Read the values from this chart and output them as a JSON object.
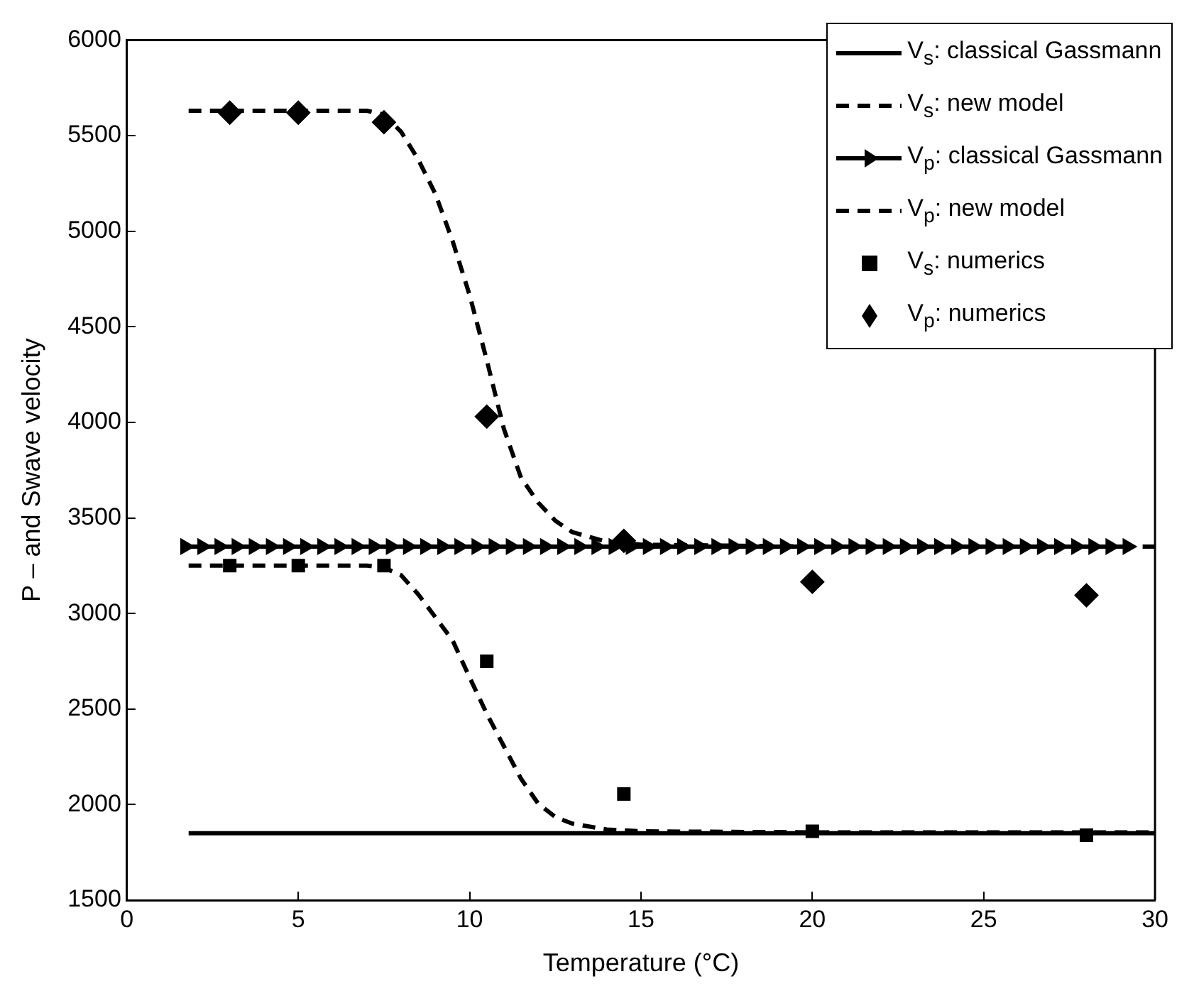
{
  "chart_data": {
    "type": "line",
    "xlabel": "Temperature (°C)",
    "ylabel": "P – and Swave velocity",
    "xlim": [
      0,
      30
    ],
    "xticks": [
      0,
      5,
      10,
      15,
      20,
      25,
      30
    ],
    "ylim": [
      1500,
      6000
    ],
    "yticks": [
      1500,
      2000,
      2500,
      3000,
      3500,
      4000,
      4500,
      5000,
      5500,
      6000
    ],
    "grid": false,
    "legend": "top right",
    "series": [
      {
        "name": "V$_{s}$: classical Gassmann",
        "color": "#000000",
        "line_style": "solid",
        "marker": "none",
        "x": [
          1.8,
          30
        ],
        "values": [
          1850,
          1850
        ]
      },
      {
        "name": "V$_{s}$: new model",
        "color": "#000000",
        "line_style": "dashed",
        "marker": "none",
        "x": [
          1.8,
          7,
          7.5,
          8,
          8.5,
          9,
          9.5,
          10,
          10.5,
          11,
          11.5,
          12,
          12.5,
          13,
          14,
          15,
          20,
          30
        ],
        "values": [
          3250,
          3250,
          3240,
          3200,
          3100,
          2980,
          2860,
          2665,
          2475,
          2305,
          2135,
          2005,
          1935,
          1900,
          1870,
          1860,
          1855,
          1855
        ]
      },
      {
        "name": "V$_{p}$: classical Gassmann",
        "color": "#000000",
        "line_style": "solid",
        "marker": "triangle",
        "x": [
          1.7,
          2.2,
          2.7,
          3.2,
          3.7,
          4.2,
          4.7,
          5.2,
          5.7,
          6.2,
          6.7,
          7.2,
          7.7,
          8.2,
          8.7,
          9.2,
          9.7,
          10.2,
          10.7,
          11.2,
          11.7,
          12.2,
          12.7,
          13.2,
          13.7,
          14.2,
          14.7,
          15.2,
          15.7,
          16.2,
          16.7,
          17.2,
          17.7,
          18.2,
          18.7,
          19.2,
          19.7,
          20.2,
          20.7,
          21.2,
          21.7,
          22.2,
          22.7,
          23.2,
          23.7,
          24.2,
          24.7,
          25.2,
          25.7,
          26.2,
          26.7,
          27.2,
          27.7,
          28.2,
          28.7,
          29.2
        ],
        "values": [
          3350,
          3350,
          3350,
          3350,
          3350,
          3350,
          3350,
          3350,
          3350,
          3350,
          3350,
          3350,
          3350,
          3350,
          3350,
          3350,
          3350,
          3350,
          3350,
          3350,
          3350,
          3350,
          3350,
          3350,
          3350,
          3350,
          3350,
          3350,
          3350,
          3350,
          3350,
          3350,
          3350,
          3350,
          3350,
          3350,
          3350,
          3350,
          3350,
          3350,
          3350,
          3350,
          3350,
          3350,
          3350,
          3350,
          3350,
          3350,
          3350,
          3350,
          3350,
          3350,
          3350,
          3350,
          3350,
          3350
        ]
      },
      {
        "name": "V$_{p}$: new model",
        "color": "#000000",
        "line_style": "dashed",
        "marker": "none",
        "x": [
          1.8,
          7,
          7.5,
          8,
          8.5,
          9,
          9.5,
          10,
          10.5,
          11,
          11.5,
          12,
          12.5,
          13,
          14,
          15,
          20,
          30
        ],
        "values": [
          5630,
          5630,
          5610,
          5520,
          5375,
          5195,
          4950,
          4665,
          4325,
          3965,
          3710,
          3580,
          3485,
          3425,
          3375,
          3360,
          3350,
          3350
        ]
      },
      {
        "name": "V$_{s}$: numerics",
        "type": "scatter",
        "color": "#000000",
        "marker": "square",
        "x": [
          3,
          5,
          7.5,
          10.5,
          14.5,
          20,
          28
        ],
        "values": [
          3250,
          3250,
          3250,
          2750,
          2055,
          1860,
          1840
        ]
      },
      {
        "name": "V$_{p}$: numerics",
        "type": "scatter",
        "color": "#000000",
        "marker": "diamond",
        "x": [
          3,
          5,
          7.5,
          10.5,
          14.5,
          20,
          28
        ],
        "values": [
          5620,
          5620,
          5570,
          4030,
          3380,
          3165,
          3095
        ]
      }
    ]
  }
}
